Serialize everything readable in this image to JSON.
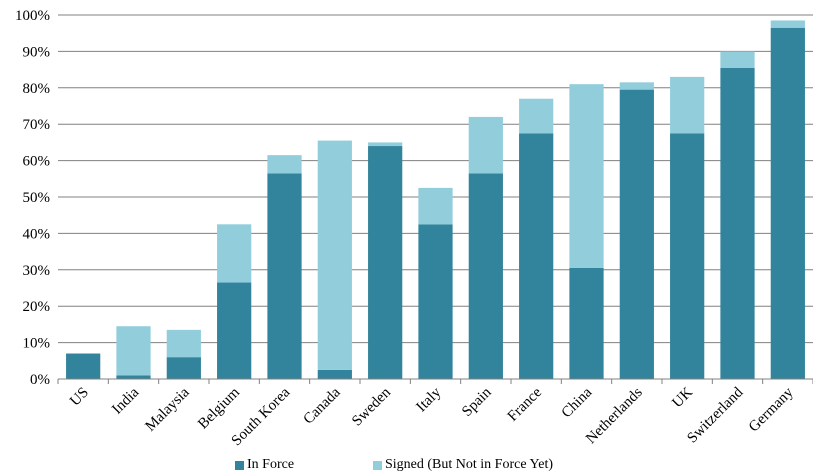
{
  "chart_data": {
    "type": "bar",
    "stacked": true,
    "categories": [
      "US",
      "India",
      "Malaysia",
      "Belgium",
      "South Korea",
      "Canada",
      "Sweden",
      "Italy",
      "Spain",
      "France",
      "China",
      "Netherlands",
      "UK",
      "Switzerland",
      "Germany"
    ],
    "series": [
      {
        "name": "In Force",
        "color": "#31849b",
        "values": [
          7,
          1,
          6,
          26.5,
          56.5,
          2.5,
          64,
          42.5,
          56.5,
          67.5,
          30.5,
          79.5,
          67.5,
          85.5,
          96.5
        ]
      },
      {
        "name": "Signed (But Not in Force Yet)",
        "color": "#92cddc",
        "values": [
          0,
          13.5,
          7.5,
          16,
          5,
          63,
          1,
          10,
          15.5,
          9.5,
          50.5,
          2,
          15.5,
          4.5,
          2
        ]
      }
    ],
    "ylim": [
      0,
      100
    ],
    "yticks": [
      0,
      10,
      20,
      30,
      40,
      50,
      60,
      70,
      80,
      90,
      100
    ],
    "ytick_suffix": "%",
    "legend_position": "bottom",
    "title": "",
    "xlabel": "",
    "ylabel": ""
  }
}
